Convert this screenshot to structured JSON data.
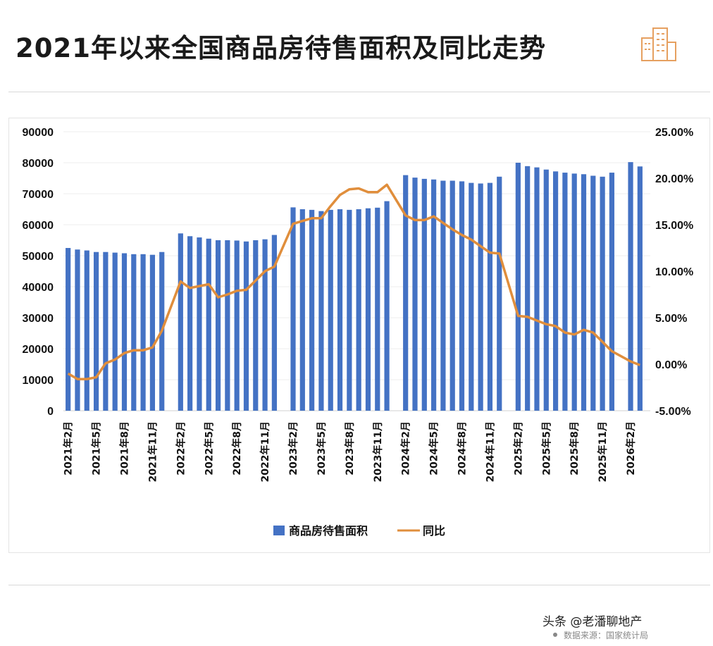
{
  "title": "2021年以来全国商品房待售面积及同比走势",
  "footer": {
    "source": "头条 @老潘聊地产",
    "note": "数据来源：国家统计局"
  },
  "logo_icon": "building-icon",
  "colors": {
    "bar": "#4472C4",
    "line": "#E08E3C"
  },
  "chart_data": {
    "type": "bar+line",
    "title": "",
    "categories": [
      "2021年2月",
      "2021年3月",
      "2021年4月",
      "2021年5月",
      "2021年6月",
      "2021年7月",
      "2021年8月",
      "2021年9月",
      "2021年10月",
      "2021年11月",
      "2021年12月",
      "2022年1月",
      "2022年2月",
      "2022年3月",
      "2022年4月",
      "2022年5月",
      "2022年6月",
      "2022年7月",
      "2022年8月",
      "2022年9月",
      "2022年10月",
      "2022年11月",
      "2022年12月",
      "2023年1月",
      "2023年2月",
      "2023年3月",
      "2023年4月",
      "2023年5月",
      "2023年6月",
      "2023年7月",
      "2023年8月",
      "2023年9月",
      "2023年10月",
      "2023年11月",
      "2023年12月",
      "2024年1月",
      "2024年2月",
      "2024年3月",
      "2024年4月",
      "2024年5月",
      "2024年6月",
      "2024年7月",
      "2024年8月",
      "2024年9月",
      "2024年10月",
      "2024年11月",
      "2024年12月",
      "2025年1月",
      "2025年2月",
      "2025年3月",
      "2025年4月",
      "2025年5月",
      "2025年6月",
      "2025年7月",
      "2025年8月",
      "2025年9月",
      "2025年10月",
      "2025年11月",
      "2025年12月",
      "2026年1月",
      "2026年2月",
      "2026年3月"
    ],
    "tick_labels": [
      "2021年2月",
      "2021年5月",
      "2021年8月",
      "2021年11月",
      "2022年2月",
      "2022年5月",
      "2022年8月",
      "2022年11月",
      "2023年2月",
      "2023年5月",
      "2023年8月",
      "2023年11月",
      "2024年2月",
      "2024年5月",
      "2024年8月",
      "2024年11月",
      "2025年2月",
      "2025年5月",
      "2025年8月",
      "2025年11月",
      "2026年2月"
    ],
    "series": [
      {
        "name": "商品房待售面积",
        "type": "bar",
        "axis": "left",
        "values": [
          52500,
          52000,
          51700,
          51200,
          51200,
          51000,
          50800,
          50500,
          50500,
          50300,
          51200,
          null,
          57200,
          56300,
          55900,
          55500,
          55000,
          55000,
          54900,
          54600,
          55000,
          55300,
          56700,
          null,
          65600,
          65000,
          64800,
          64400,
          64800,
          65000,
          64800,
          65000,
          65300,
          65500,
          67600,
          null,
          76000,
          75200,
          74800,
          74600,
          74200,
          74200,
          74000,
          73500,
          73300,
          73500,
          75500,
          null,
          80000,
          78900,
          78500,
          77800,
          77200,
          76800,
          76500,
          76300,
          75800,
          75500,
          76800,
          null,
          80200,
          78800
        ]
      },
      {
        "name": "同比",
        "type": "line",
        "axis": "right",
        "unit": "%",
        "values": [
          -1.0,
          -1.6,
          -1.6,
          -1.4,
          0.1,
          0.5,
          1.2,
          1.5,
          1.5,
          1.8,
          3.6,
          null,
          8.9,
          8.2,
          8.4,
          8.6,
          7.2,
          7.5,
          7.9,
          8.0,
          9.0,
          10.0,
          10.5,
          null,
          15.1,
          15.4,
          15.7,
          15.7,
          17.0,
          18.2,
          18.8,
          18.9,
          18.5,
          18.5,
          19.3,
          null,
          16.0,
          15.5,
          15.5,
          15.9,
          15.2,
          14.5,
          13.9,
          13.4,
          12.7,
          12.0,
          11.9,
          null,
          5.2,
          5.1,
          4.7,
          4.3,
          4.1,
          3.4,
          3.2,
          3.7,
          3.4,
          2.4,
          1.4,
          null,
          0.3,
          -0.1
        ]
      }
    ],
    "y_left": {
      "min": 0,
      "max": 90000,
      "ticks": [
        "0",
        "10000",
        "20000",
        "30000",
        "40000",
        "50000",
        "60000",
        "70000",
        "80000",
        "90000"
      ]
    },
    "y_right": {
      "min": -5,
      "max": 25,
      "ticks": [
        "-5.00%",
        "0.00%",
        "5.00%",
        "10.00%",
        "15.00%",
        "20.00%",
        "25.00%"
      ]
    },
    "grid": true,
    "legend": {
      "placement": "bottom",
      "items": [
        "商品房待售面积",
        "同比"
      ]
    }
  }
}
